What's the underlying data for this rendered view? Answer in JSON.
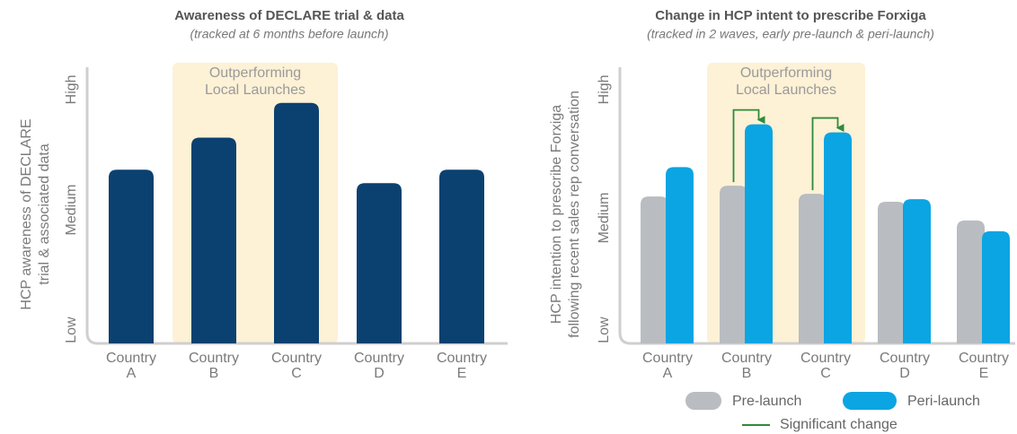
{
  "chart_data": [
    {
      "type": "bar",
      "title": "Awareness of DECLARE trial & data",
      "subtitle": "(tracked at 6 months before launch)",
      "ylabel": [
        "HCP awareness of DECLARE",
        "trial & associated data"
      ],
      "categories": [
        "Country A",
        "Country B",
        "Country C",
        "Country D",
        "Country E"
      ],
      "values": [
        65,
        77,
        90,
        60,
        65
      ],
      "color": "#0b4170",
      "ylim": [
        0,
        100
      ],
      "yticks": [
        {
          "value": 5,
          "label": "Low"
        },
        {
          "value": 50,
          "label": "Medium"
        },
        {
          "value": 95,
          "label": "High"
        }
      ],
      "highlight": {
        "label": "Outperforming Local Launches",
        "categories": [
          "Country B",
          "Country C"
        ],
        "color": "#fdf1d6"
      }
    },
    {
      "type": "grouped_bar",
      "title": "Change in HCP intent to prescribe Forxiga",
      "subtitle": "(tracked in 2 waves, early pre-launch & peri-launch)",
      "ylabel": [
        "HCP intention to prescribe Forxiga",
        "following recent sales rep conversation"
      ],
      "categories": [
        "Country A",
        "Country B",
        "Country C",
        "Country D",
        "Country E"
      ],
      "series": [
        {
          "name": "Pre-launch",
          "color": "#b9bcc0",
          "values": [
            55,
            59,
            56,
            53,
            46
          ]
        },
        {
          "name": "Peri-launch",
          "color": "#0aa5e2",
          "values": [
            66,
            82,
            79,
            54,
            42
          ]
        }
      ],
      "ylim": [
        0,
        100
      ],
      "yticks": [
        {
          "value": 5,
          "label": "Low"
        },
        {
          "value": 47,
          "label": "Medium"
        },
        {
          "value": 95,
          "label": "High"
        }
      ],
      "highlight": {
        "label": "Outperforming Local Launches",
        "categories": [
          "Country B",
          "Country C"
        ],
        "color": "#fdf1d6"
      },
      "significant": {
        "label": "Significant change",
        "color": "#2e8b3a",
        "categories": [
          "Country B",
          "Country C"
        ]
      },
      "legend": "bottom"
    }
  ]
}
